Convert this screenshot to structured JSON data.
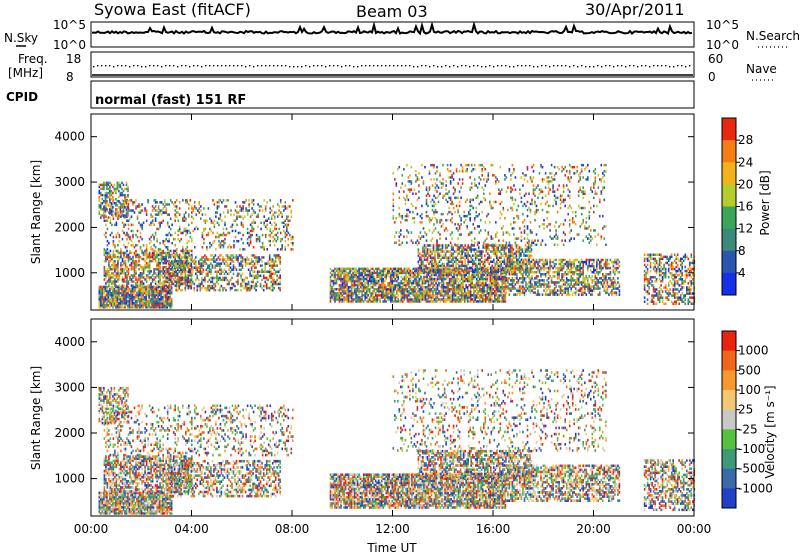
{
  "header": {
    "station": "Syowa East (fitACF)",
    "beam": "Beam 03",
    "date": "30/Apr/2011"
  },
  "summary": {
    "nsky_label": "N.Sky",
    "nsearch_label": "N.Search",
    "freq_label_1": "Freq.",
    "freq_label_2": "[MHz]",
    "nave_label": "Nave",
    "cpid_label": "CPID",
    "cpid_value": "normal (fast) 151 RF",
    "noise_ticks": [
      "10^5",
      "10^0"
    ],
    "freq_ticks": [
      "18",
      "8"
    ],
    "nave_ticks": [
      "60",
      "0"
    ]
  },
  "chart_data": [
    {
      "type": "heatmap",
      "name": "power",
      "xlabel": "",
      "ylabel": "Slant Range [km]",
      "xlim_hours": [
        0,
        24
      ],
      "ylim_km": [
        180,
        4500
      ],
      "y_ticks": [
        1000,
        2000,
        3000,
        4000
      ],
      "colorbar": {
        "label": "Power [dB]",
        "ticks": [
          "4",
          "8",
          "12",
          "16",
          "20",
          "24",
          "28"
        ],
        "colors": [
          "#1530e8",
          "#2a56b0",
          "#3b8a7a",
          "#3aa65a",
          "#b6cc2a",
          "#f2b21a",
          "#f57d14",
          "#e8280f"
        ]
      }
    },
    {
      "type": "heatmap",
      "name": "velocity",
      "xlabel": "Time UT",
      "ylabel": "Slant Range [km]",
      "xlim_hours": [
        0,
        24
      ],
      "ylim_km": [
        180,
        4500
      ],
      "y_ticks": [
        1000,
        2000,
        3000,
        4000
      ],
      "x_ticks": [
        "00:00",
        "04:00",
        "08:00",
        "12:00",
        "16:00",
        "20:00",
        "00:00"
      ],
      "colorbar": {
        "label": "Velocity [m s⁻¹]",
        "ticks": [
          "1000",
          "500",
          "100",
          "25",
          "-25",
          "-100",
          "-500",
          "-1000"
        ],
        "colors": [
          "#2140c8",
          "#3a6aa8",
          "#3e9a78",
          "#56c040",
          "#c8c8c8",
          "#f4c873",
          "#f59a2a",
          "#f2661a",
          "#e8230f"
        ]
      }
    }
  ]
}
